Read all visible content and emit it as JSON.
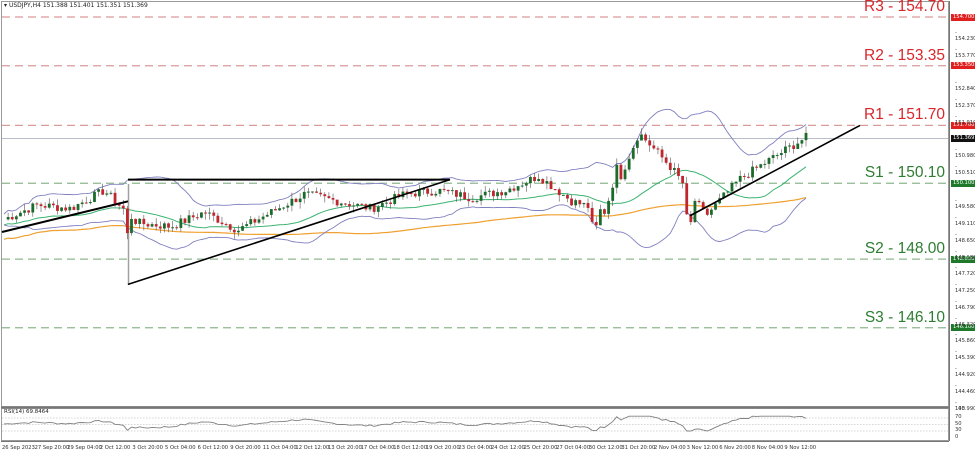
{
  "header": {
    "symbol": "USDJPY,H4",
    "ohlc_text": "USDJPY,H4  151.388 151.401 151.351 151.369"
  },
  "levels": [
    {
      "id": "R3",
      "label": "R3 - 154.70",
      "price": 154.7,
      "type": "resistance",
      "badge": "154.700"
    },
    {
      "id": "R2",
      "label": "R2 - 153.35",
      "price": 153.35,
      "type": "resistance",
      "badge": "153.350"
    },
    {
      "id": "R1",
      "label": "R1 - 151.70",
      "price": 151.7,
      "type": "resistance",
      "badge": "151.700"
    },
    {
      "id": "S1",
      "label": "S1 - 150.10",
      "price": 150.1,
      "type": "support",
      "badge": "150.100"
    },
    {
      "id": "S2",
      "label": "S2 - 148.00",
      "price": 148.0,
      "type": "support",
      "badge": "148.000"
    },
    {
      "id": "S3",
      "label": "S3 - 146.10",
      "price": 146.1,
      "type": "support",
      "badge": "146.100"
    }
  ],
  "current_price": {
    "value": 151.369,
    "badge": "151.369"
  },
  "price_axis": {
    "ticks": [
      "154.230",
      "153.770",
      "152.840",
      "152.370",
      "151.910",
      "150.980",
      "150.510",
      "149.580",
      "149.110",
      "148.650",
      "148.180",
      "147.720",
      "147.250",
      "146.790",
      "146.320",
      "145.860",
      "145.390",
      "144.920",
      "144.460",
      "143.990"
    ]
  },
  "time_axis": {
    "ticks": [
      "26 Sep 2023",
      "27 Sep 20:00",
      "29 Sep 04:00",
      "2 Oct 12:00",
      "3 Oct 20:00",
      "5 Oct 04:00",
      "6 Oct 12:00",
      "9 Oct 20:00",
      "11 Oct 04:00",
      "12 Oct 12:00",
      "13 Oct 20:00",
      "17 Oct 04:00",
      "18 Oct 12:00",
      "19 Oct 20:00",
      "23 Oct 04:00",
      "24 Oct 12:00",
      "25 Oct 20:00",
      "27 Oct 04:00",
      "30 Oct 12:00",
      "31 Oct 20:00",
      "2 Nov 04:00",
      "3 Nov 12:00",
      "6 Nov 20:00",
      "8 Nov 04:00",
      "9 Nov 12:00"
    ]
  },
  "rsi": {
    "label": "RSI(14) 69.8464",
    "ticks": [
      "100",
      "70",
      "50",
      "30",
      "0"
    ]
  },
  "colors": {
    "resistance": "#d9262b",
    "resistance_line": "#d99a9a",
    "support": "#2e7d32",
    "support_line": "#8fb88f",
    "bull": "#1b6b2b",
    "bear": "#c0262d",
    "bollinger": "#8080c0",
    "ma_fast": "#3cb371",
    "ma_slow": "#f0a030",
    "trendline": "#000000"
  },
  "chart_data": {
    "type": "candlestick",
    "title": "USDJPY,H4",
    "symbol": "USDJPY",
    "timeframe": "H4",
    "last_ohlc": {
      "open": 151.388,
      "high": 151.401,
      "low": 151.351,
      "close": 151.369
    },
    "ylim": [
      143.99,
      154.7
    ],
    "horizontal_levels": [
      {
        "name": "R3",
        "value": 154.7
      },
      {
        "name": "R2",
        "value": 153.35
      },
      {
        "name": "R1",
        "value": 151.7
      },
      {
        "name": "S1",
        "value": 150.1
      },
      {
        "name": "S2",
        "value": 148.0
      },
      {
        "name": "S3",
        "value": 146.1
      }
    ],
    "x_tick_labels": [
      "26 Sep 2023",
      "27 Sep 20:00",
      "29 Sep 04:00",
      "2 Oct 12:00",
      "3 Oct 20:00",
      "5 Oct 04:00",
      "6 Oct 12:00",
      "9 Oct 20:00",
      "11 Oct 04:00",
      "12 Oct 12:00",
      "13 Oct 20:00",
      "17 Oct 04:00",
      "18 Oct 12:00",
      "19 Oct 20:00",
      "23 Oct 04:00",
      "24 Oct 12:00",
      "25 Oct 20:00",
      "27 Oct 04:00",
      "30 Oct 12:00",
      "31 Oct 20:00",
      "2 Nov 04:00",
      "3 Nov 12:00",
      "6 Nov 20:00",
      "8 Nov 04:00",
      "9 Nov 12:00"
    ],
    "approx_close_path": [
      {
        "t": "26 Sep 2023",
        "close": 149.1
      },
      {
        "t": "27 Sep 20:00",
        "close": 149.5
      },
      {
        "t": "29 Sep 04:00",
        "close": 149.4
      },
      {
        "t": "2 Oct 12:00",
        "close": 149.9
      },
      {
        "t": "3 Oct 20:00",
        "close": 149.0
      },
      {
        "t": "5 Oct 04:00",
        "close": 148.9
      },
      {
        "t": "6 Oct 12:00",
        "close": 149.3
      },
      {
        "t": "9 Oct 20:00",
        "close": 148.8
      },
      {
        "t": "11 Oct 04:00",
        "close": 149.3
      },
      {
        "t": "12 Oct 12:00",
        "close": 149.8
      },
      {
        "t": "13 Oct 20:00",
        "close": 149.6
      },
      {
        "t": "17 Oct 04:00",
        "close": 149.4
      },
      {
        "t": "18 Oct 12:00",
        "close": 149.8
      },
      {
        "t": "19 Oct 20:00",
        "close": 149.9
      },
      {
        "t": "23 Oct 04:00",
        "close": 149.7
      },
      {
        "t": "24 Oct 12:00",
        "close": 149.9
      },
      {
        "t": "25 Oct 20:00",
        "close": 150.3
      },
      {
        "t": "27 Oct 04:00",
        "close": 149.6
      },
      {
        "t": "30 Oct 12:00",
        "close": 149.3
      },
      {
        "t": "31 Oct 20:00",
        "close": 151.5
      },
      {
        "t": "2 Nov 04:00",
        "close": 150.5
      },
      {
        "t": "3 Nov 12:00",
        "close": 149.2
      },
      {
        "t": "6 Nov 20:00",
        "close": 150.2
      },
      {
        "t": "8 Nov 04:00",
        "close": 150.8
      },
      {
        "t": "9 Nov 12:00",
        "close": 151.37
      }
    ],
    "indicators": [
      {
        "name": "Bollinger Bands",
        "color": "#8080c0"
      },
      {
        "name": "Moving Average (fast)",
        "color": "#3cb371"
      },
      {
        "name": "Moving Average (slow)",
        "color": "#f0a030"
      },
      {
        "name": "RSI(14)",
        "value": 69.8464,
        "levels": [
          30,
          50,
          70
        ],
        "range": [
          0,
          100
        ]
      }
    ],
    "trendlines": [
      {
        "name": "rising support (Sep)",
        "from": [
          "26 Sep 2023",
          148.75
        ],
        "to": [
          "2 Oct 12:00",
          149.6
        ]
      },
      {
        "name": "triangle top (horizontal)",
        "from": [
          "3 Oct 00:00",
          150.2
        ],
        "to": [
          "19 Oct 20:00",
          150.2
        ]
      },
      {
        "name": "triangle bottom (rising)",
        "from": [
          "3 Oct 00:00",
          147.3
        ],
        "to": [
          "19 Oct 20:00",
          150.2
        ]
      },
      {
        "name": "rising support (Nov)",
        "from": [
          "3 Nov 04:00",
          149.2
        ],
        "to": [
          "10 Nov 04:00",
          151.7
        ]
      }
    ],
    "grid": false,
    "legend": "none"
  }
}
